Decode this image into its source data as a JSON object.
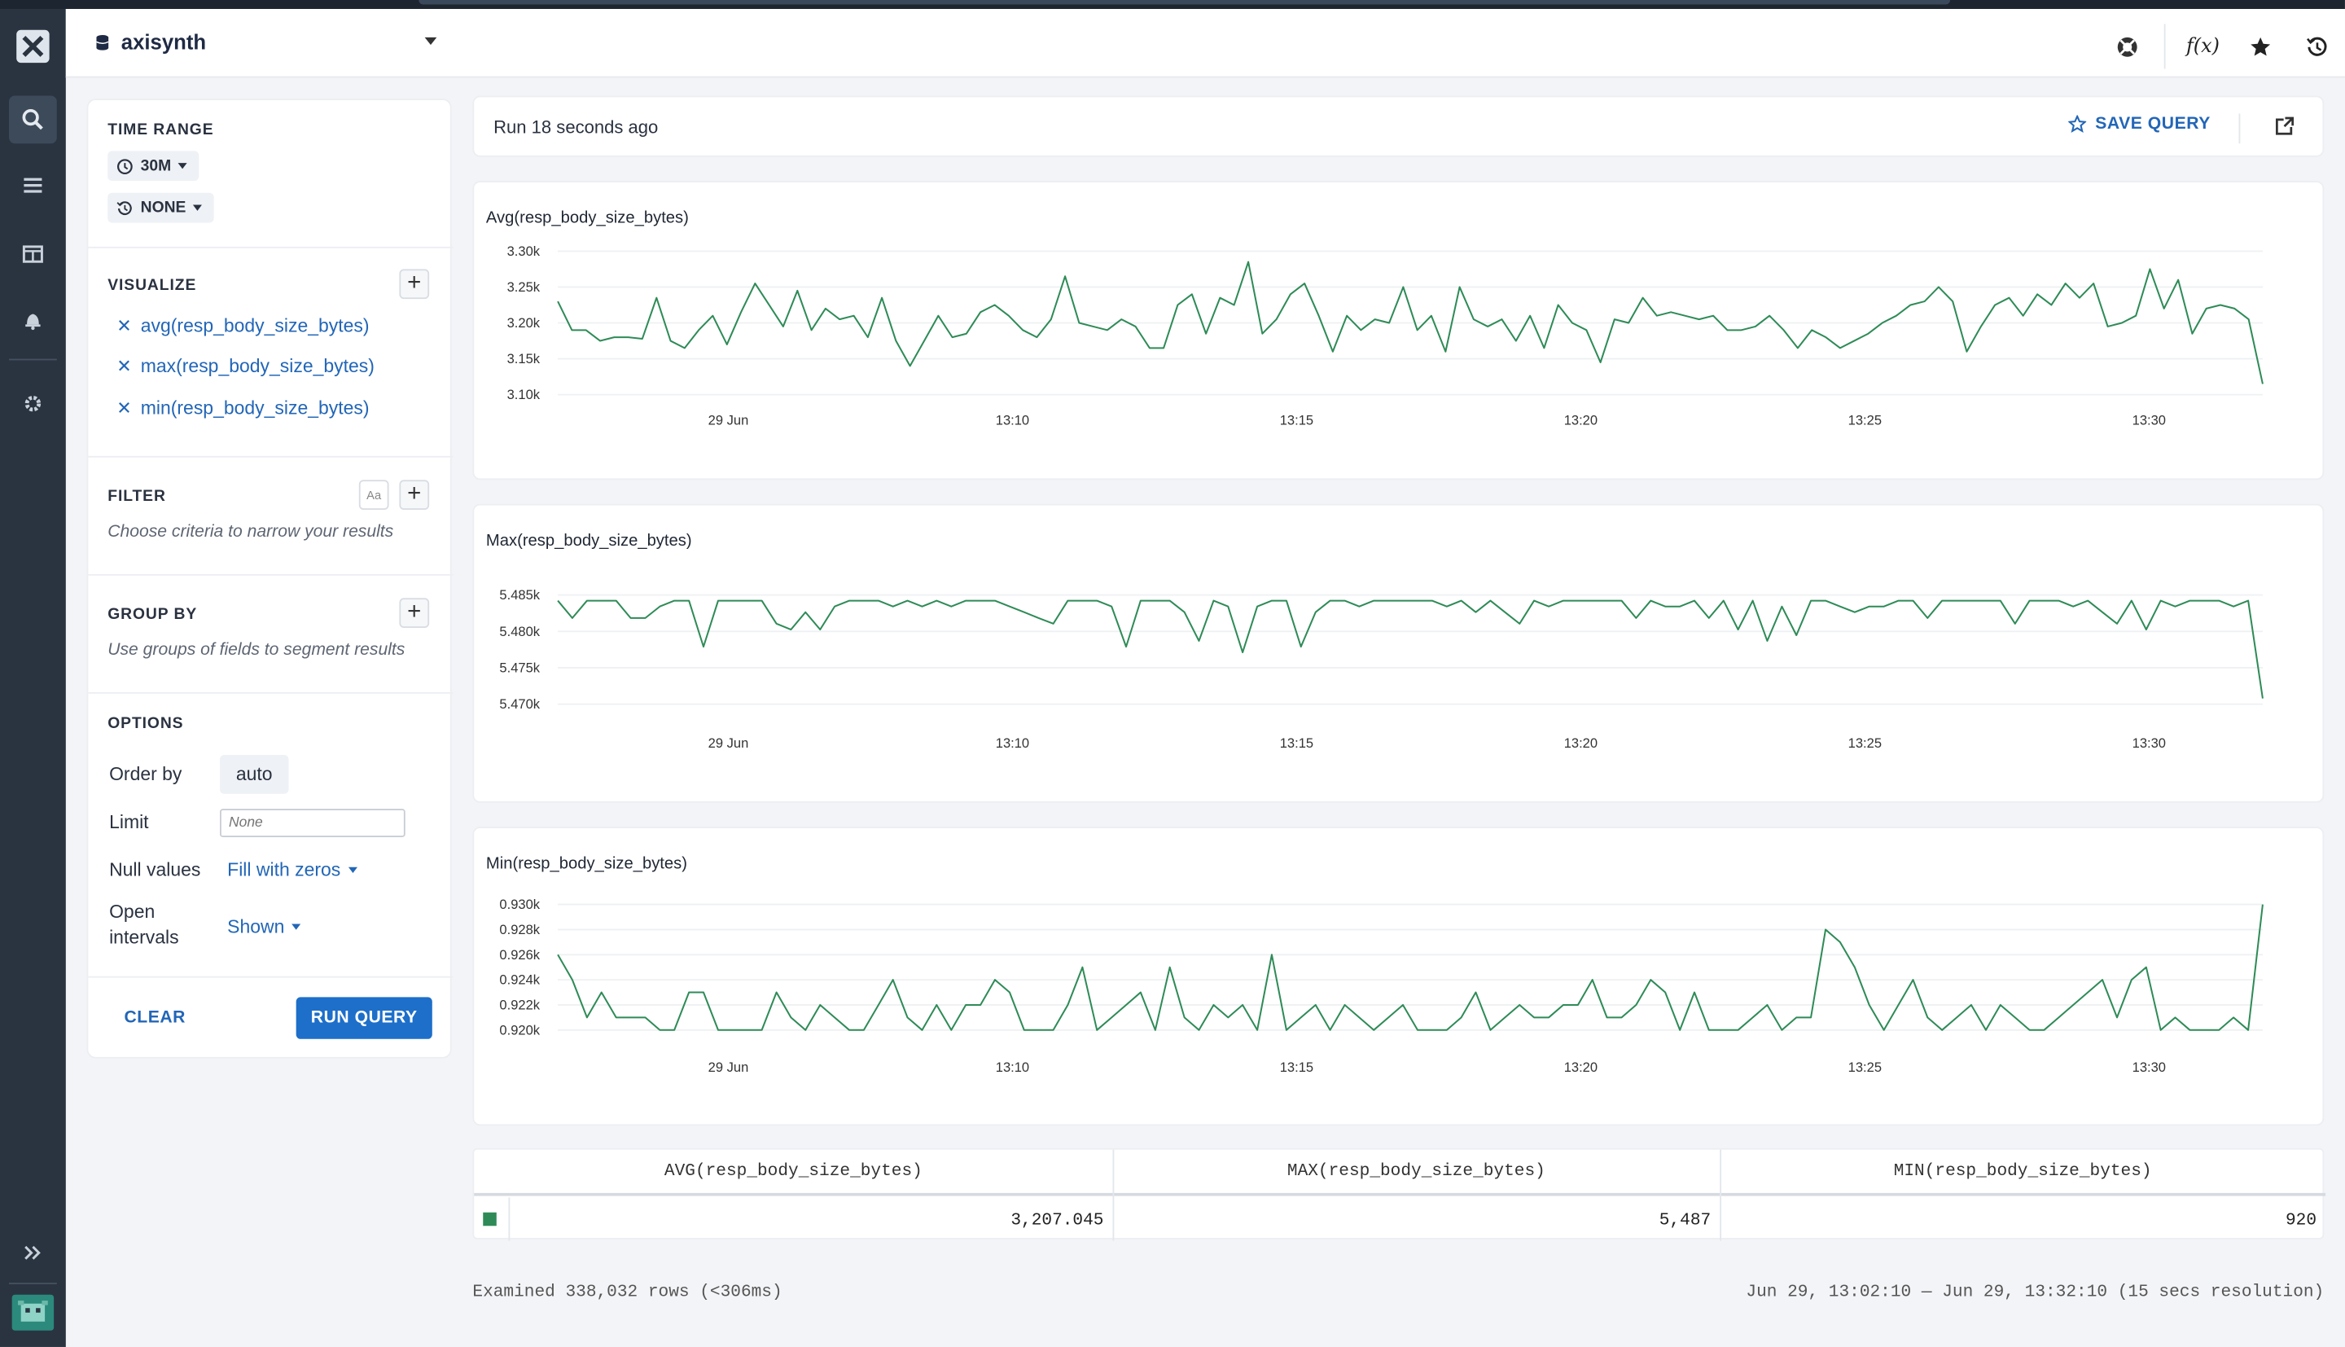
{
  "header": {
    "dataset": "axisynth",
    "icons": [
      "help-icon",
      "function-icon",
      "star-icon",
      "history-icon"
    ],
    "function_label": "f(x)"
  },
  "rail": {
    "items": [
      "search-icon",
      "list-icon",
      "dashboard-icon",
      "bell-icon",
      "gear-icon",
      "expand-icon"
    ]
  },
  "panel": {
    "time_range": {
      "title": "TIME RANGE",
      "range": "30M",
      "compare": "NONE"
    },
    "visualize": {
      "title": "VISUALIZE",
      "items": [
        "avg(resp_body_size_bytes)",
        "max(resp_body_size_bytes)",
        "min(resp_body_size_bytes)"
      ]
    },
    "filter": {
      "title": "FILTER",
      "hint": "Choose criteria to narrow your results",
      "case_label": "Aa"
    },
    "group_by": {
      "title": "GROUP BY",
      "hint": "Use groups of fields to segment results"
    },
    "options": {
      "title": "OPTIONS",
      "order_by_label": "Order by",
      "order_by_value": "auto",
      "limit_label": "Limit",
      "limit_placeholder": "None",
      "null_values_label": "Null values",
      "null_values_value": "Fill with zeros",
      "open_intervals_label_1": "Open",
      "open_intervals_label_2": "intervals",
      "open_intervals_value": "Shown"
    },
    "clear_label": "CLEAR",
    "run_label": "RUN QUERY"
  },
  "runbar": {
    "status": "Run 18 seconds ago",
    "save_label": "SAVE QUERY"
  },
  "colors": {
    "accent": "#1d6fc9",
    "series": "#2e8b57"
  },
  "chart_data": [
    {
      "type": "line",
      "title": "Avg(resp_body_size_bytes)",
      "x_ticks": [
        "29 Jun",
        "13:10",
        "13:15",
        "13:20",
        "13:25",
        "13:30"
      ],
      "y_ticks": [
        "3.30k",
        "3.25k",
        "3.20k",
        "3.15k",
        "3.10k"
      ],
      "ylim": [
        3100,
        3300
      ],
      "grid": true,
      "values": [
        3230,
        3190,
        3190,
        3175,
        3180,
        3180,
        3178,
        3235,
        3175,
        3165,
        3190,
        3210,
        3170,
        3215,
        3255,
        3225,
        3195,
        3245,
        3190,
        3220,
        3205,
        3210,
        3180,
        3235,
        3175,
        3140,
        3175,
        3210,
        3180,
        3185,
        3215,
        3225,
        3210,
        3190,
        3180,
        3205,
        3265,
        3200,
        3195,
        3190,
        3205,
        3195,
        3165,
        3165,
        3225,
        3240,
        3185,
        3235,
        3225,
        3285,
        3185,
        3205,
        3240,
        3255,
        3210,
        3160,
        3210,
        3190,
        3205,
        3200,
        3250,
        3190,
        3210,
        3160,
        3250,
        3205,
        3195,
        3205,
        3175,
        3210,
        3165,
        3225,
        3200,
        3190,
        3145,
        3205,
        3200,
        3235,
        3210,
        3215,
        3210,
        3205,
        3210,
        3190,
        3190,
        3195,
        3210,
        3190,
        3165,
        3190,
        3180,
        3165,
        3175,
        3185,
        3200,
        3210,
        3225,
        3230,
        3250,
        3230,
        3160,
        3195,
        3225,
        3235,
        3210,
        3240,
        3225,
        3255,
        3235,
        3255,
        3195,
        3200,
        3210,
        3275,
        3220,
        3260,
        3185,
        3220,
        3225,
        3220,
        3205,
        3115
      ]
    },
    {
      "type": "line",
      "title": "Max(resp_body_size_bytes)",
      "x_ticks": [
        "29 Jun",
        "13:10",
        "13:15",
        "13:20",
        "13:25",
        "13:30"
      ],
      "y_ticks": [
        "5.485k",
        "5.480k",
        "5.475k",
        "5.470k"
      ],
      "ylim": [
        5469,
        5488
      ],
      "grid": true,
      "values": [
        5487,
        5484,
        5487,
        5487,
        5487,
        5484,
        5484,
        5486,
        5487,
        5487,
        5479,
        5487,
        5487,
        5487,
        5487,
        5483,
        5482,
        5485,
        5482,
        5486,
        5487,
        5487,
        5487,
        5486,
        5487,
        5486,
        5487,
        5486,
        5487,
        5487,
        5487,
        5486,
        5485,
        5484,
        5483,
        5487,
        5487,
        5487,
        5486,
        5479,
        5487,
        5487,
        5487,
        5485,
        5480,
        5487,
        5486,
        5478,
        5486,
        5487,
        5487,
        5479,
        5485,
        5487,
        5487,
        5486,
        5487,
        5487,
        5487,
        5487,
        5487,
        5486,
        5487,
        5485,
        5487,
        5485,
        5483,
        5487,
        5486,
        5487,
        5487,
        5487,
        5487,
        5487,
        5484,
        5487,
        5486,
        5486,
        5487,
        5484,
        5487,
        5482,
        5487,
        5480,
        5486,
        5481,
        5487,
        5487,
        5486,
        5485,
        5486,
        5486,
        5487,
        5487,
        5484,
        5487,
        5487,
        5487,
        5487,
        5487,
        5483,
        5487,
        5487,
        5487,
        5486,
        5487,
        5485,
        5483,
        5487,
        5482,
        5487,
        5486,
        5487,
        5487,
        5487,
        5486,
        5487,
        5470
      ]
    },
    {
      "type": "line",
      "title": "Min(resp_body_size_bytes)",
      "x_ticks": [
        "29 Jun",
        "13:10",
        "13:15",
        "13:20",
        "13:25",
        "13:30"
      ],
      "y_ticks": [
        "0.930k",
        "0.928k",
        "0.926k",
        "0.924k",
        "0.922k",
        "0.920k"
      ],
      "ylim": [
        920,
        930
      ],
      "grid": true,
      "values": [
        926,
        924,
        921,
        923,
        921,
        921,
        921,
        920,
        920,
        923,
        923,
        920,
        920,
        920,
        920,
        923,
        921,
        920,
        922,
        921,
        920,
        920,
        922,
        924,
        921,
        920,
        922,
        920,
        922,
        922,
        924,
        923,
        920,
        920,
        920,
        922,
        925,
        920,
        921,
        922,
        923,
        920,
        925,
        921,
        920,
        922,
        921,
        922,
        920,
        926,
        920,
        921,
        922,
        920,
        922,
        921,
        920,
        921,
        922,
        920,
        920,
        920,
        921,
        923,
        920,
        921,
        922,
        921,
        921,
        922,
        922,
        924,
        921,
        921,
        922,
        924,
        923,
        920,
        923,
        920,
        920,
        920,
        921,
        922,
        920,
        921,
        921,
        928,
        927,
        925,
        922,
        920,
        922,
        924,
        921,
        920,
        921,
        922,
        920,
        922,
        921,
        920,
        920,
        921,
        922,
        923,
        924,
        921,
        924,
        925,
        920,
        921,
        920,
        920,
        920,
        921,
        920,
        930
      ]
    }
  ],
  "table": {
    "headers": [
      "AVG(resp_body_size_bytes)",
      "MAX(resp_body_size_bytes)",
      "MIN(resp_body_size_bytes)"
    ],
    "row": [
      "3,207.045",
      "5,487",
      "920"
    ]
  },
  "footer": {
    "examined": "Examined 338,032 rows (<306ms)",
    "range": "Jun 29, 13:02:10 — Jun 29, 13:32:10 (15 secs resolution)"
  }
}
